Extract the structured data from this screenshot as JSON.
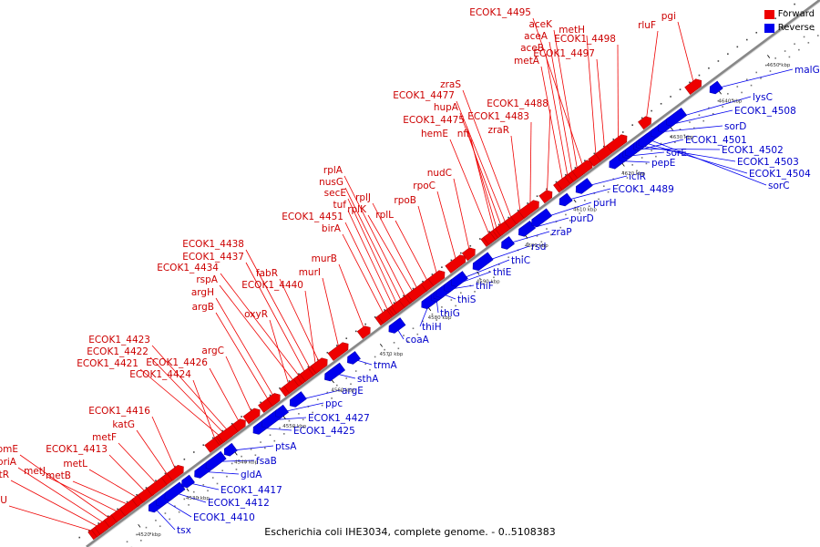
{
  "caption": "Escherichia coli IHE3034, complete genome. - 0..5108383",
  "legend": [
    {
      "label": "Forward",
      "color": "#ee0000"
    },
    {
      "label": "Reverse",
      "color": "#0000ee"
    }
  ],
  "colors": {
    "forward": "#ee0000",
    "reverse": "#0000ee",
    "backbone": "#999999"
  },
  "axis": {
    "unit": "kbp",
    "ticks": [
      "4520 kbp",
      "4530 kbp",
      "4540 kbp",
      "4550 kbp",
      "4560 kbp",
      "4570 kbp",
      "4580 kbp",
      "4590 kbp",
      "4600 kbp",
      "4610 kbp",
      "4620 kbp",
      "4630 kbp",
      "4640 kbp",
      "4650 kbp"
    ]
  },
  "forward_genes": [
    "hslU",
    "cytR",
    "priA",
    "rpmE",
    "metJ",
    "metB",
    "metL",
    "ECOK1_4413",
    "metF",
    "katG",
    "ECOK1_4416",
    "ECOK1_4424",
    "ECOK1_4421",
    "ECOK1_4422",
    "ECOK1_4423",
    "ECOK1_4426",
    "argC",
    "argB",
    "argH",
    "oxyR",
    "rspA",
    "ECOK1_4434",
    "ECOK1_4437",
    "ECOK1_4438",
    "ECOK1_4440",
    "fabR",
    "murI",
    "murB",
    "birA",
    "ECOK1_4451",
    "tuf",
    "secE",
    "nusG",
    "rplA",
    "rplK",
    "rplJ",
    "rplL",
    "rpoB",
    "rpoC",
    "nudC",
    "hemE",
    "nfi",
    "ECOK1_4475",
    "hupA",
    "ECOK1_4477",
    "zraS",
    "zraR",
    "ECOK1_4483",
    "ECOK1_4488",
    "metA",
    "aceB",
    "aceA",
    "aceK",
    "ECOK1_4495",
    "metH",
    "ECOK1_4497",
    "ECOK1_4498",
    "rluF",
    "pgi"
  ],
  "reverse_genes": [
    "tsx",
    "ECOK1_4410",
    "ECOK1_4412",
    "ECOK1_4417",
    "gldA",
    "fsaB",
    "ptsA",
    "ECOK1_4425",
    "ECOK1_4427",
    "ppc",
    "argE",
    "sthA",
    "trmA",
    "coaA",
    "thiH",
    "thiG",
    "thiS",
    "thiF",
    "thiE",
    "thiC",
    "rsd",
    "zraP",
    "purD",
    "purH",
    "ECOK1_4489",
    "iclR",
    "pepE",
    "sorE",
    "ECOK1_4501",
    "ECOK1_4502",
    "ECOK1_4503",
    "ECOK1_4504",
    "sorC",
    "sorD",
    "ECOK1_4508",
    "lysC",
    "malG"
  ]
}
